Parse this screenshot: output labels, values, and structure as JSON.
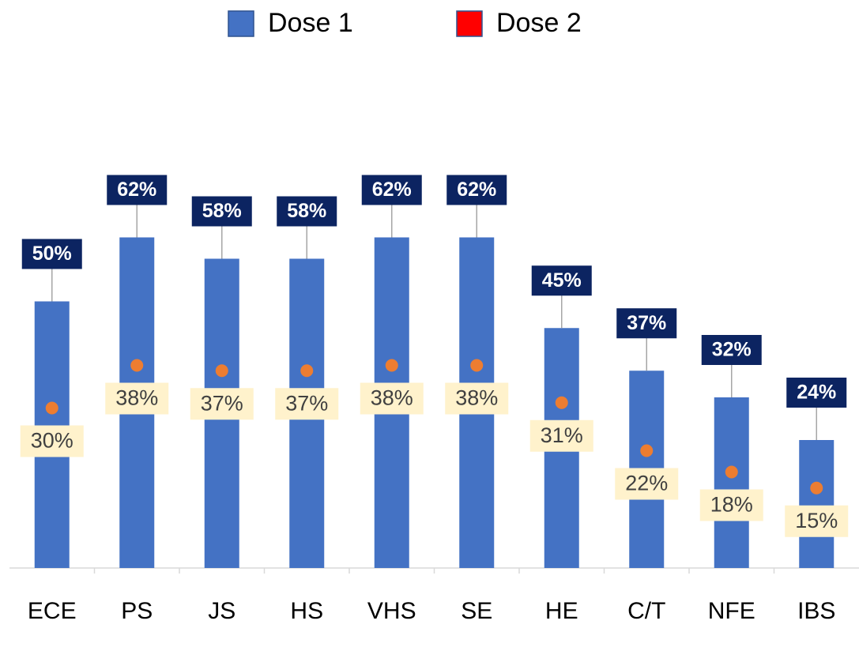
{
  "chart_data": {
    "type": "bar",
    "categories": [
      "ECE",
      "PS",
      "JS",
      "HS",
      "VHS",
      "SE",
      "HE",
      "C/T",
      "NFE",
      "IBS"
    ],
    "series": [
      {
        "name": "Dose 1",
        "color": "#4472c4",
        "values": [
          50,
          62,
          58,
          58,
          62,
          62,
          45,
          37,
          32,
          24
        ],
        "value_labels": [
          "50%",
          "62%",
          "58%",
          "58%",
          "62%",
          "62%",
          "45%",
          "37%",
          "32%",
          "24%"
        ]
      },
      {
        "name": "Dose 2",
        "color": "#ff0000",
        "marker_color": "#ed7d31",
        "values": [
          30,
          38,
          37,
          37,
          38,
          38,
          31,
          22,
          18,
          15
        ],
        "value_labels": [
          "30%",
          "38%",
          "37%",
          "37%",
          "38%",
          "38%",
          "31%",
          "22%",
          "18%",
          "15%"
        ]
      }
    ],
    "ylim": [
      0,
      100
    ],
    "legend": "top"
  }
}
